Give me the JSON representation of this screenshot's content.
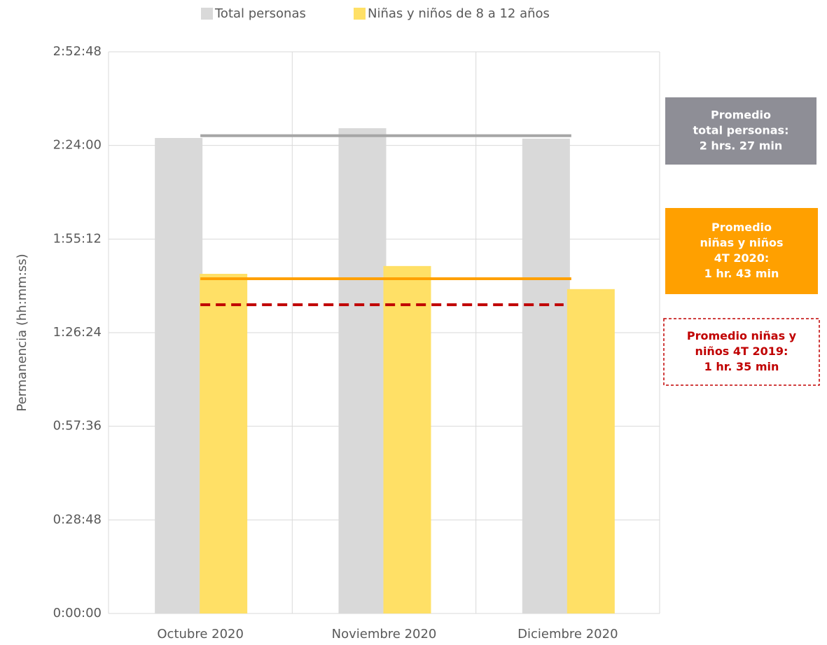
{
  "chart_data": {
    "type": "bar",
    "y_label": "Permanencia (hh:mm:ss)",
    "categories": [
      "Octubre 2020",
      "Noviembre 2020",
      "Diciembre 2020"
    ],
    "series": [
      {
        "name": "Total personas",
        "color": "#d9d9d9",
        "values": [
          146.3,
          149.3,
          146.1
        ]
      },
      {
        "name": "Niñas y niños de 8 a 12 años",
        "color": "#ffe066",
        "values": [
          104.5,
          106.9,
          99.8
        ]
      }
    ],
    "ylim": [
      0,
      172.8
    ],
    "yticks": [
      {
        "value": 0,
        "label": "0:00:00"
      },
      {
        "value": 28.8,
        "label": "0:28:48"
      },
      {
        "value": 57.6,
        "label": "0:57:36"
      },
      {
        "value": 86.4,
        "label": "1:26:24"
      },
      {
        "value": 115.2,
        "label": "1:55:12"
      },
      {
        "value": 144,
        "label": "2:24:00"
      },
      {
        "value": 172.8,
        "label": "2:52:48"
      }
    ],
    "grid": true,
    "legend": "top",
    "reference_lines": [
      {
        "value": 147,
        "color": "#a6a6a6",
        "style": "solid",
        "box_fill": "#8e8e96",
        "text_color": "#ffffff",
        "label": [
          "Promedio",
          "total personas:",
          "2 hrs. 27 min"
        ]
      },
      {
        "value": 103,
        "color": "#ffa000",
        "style": "solid",
        "box_fill": "#ffa000",
        "text_color": "#ffffff",
        "label": [
          "Promedio",
          "niñas y niños",
          "4T 2020:",
          "1 hr. 43 min"
        ]
      },
      {
        "value": 95,
        "color": "#c00000",
        "style": "dashed",
        "box_fill": "#ffffff",
        "text_color": "#c00000",
        "label": [
          "Promedio niñas y",
          "niños 4T 2019:",
          "1 hr. 35 min"
        ]
      }
    ]
  }
}
